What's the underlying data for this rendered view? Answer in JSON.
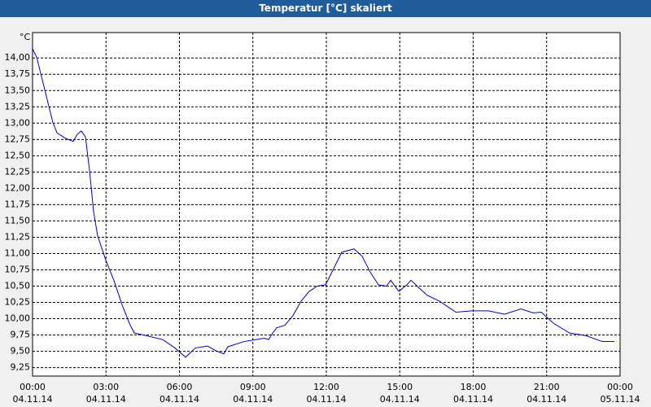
{
  "chart_data": {
    "type": "line",
    "title": "Temperatur [°C] skaliert",
    "y_label": "°C",
    "xlim": [
      0,
      24
    ],
    "ylim": [
      9.12,
      14.39
    ],
    "xticks": [
      {
        "value": 0,
        "label": "00:00"
      },
      {
        "value": 3,
        "label": "03:00"
      },
      {
        "value": 6,
        "label": "06:00"
      },
      {
        "value": 9,
        "label": "09:00"
      },
      {
        "value": 12,
        "label": "12:00"
      },
      {
        "value": 15,
        "label": "15:00"
      },
      {
        "value": 18,
        "label": "18:00"
      },
      {
        "value": 21,
        "label": "21:00"
      },
      {
        "value": 24,
        "label": "00:00"
      }
    ],
    "xtick_dates": [
      "04.11.14",
      "04.11.14",
      "04.11.14",
      "04.11.14",
      "04.11.14",
      "04.11.14",
      "04.11.14",
      "04.11.14",
      "05.11.14"
    ],
    "yticks": [
      {
        "value": 9.25,
        "label": "9,25"
      },
      {
        "value": 9.5,
        "label": "9,50"
      },
      {
        "value": 9.75,
        "label": "9,75"
      },
      {
        "value": 10,
        "label": "10,00"
      },
      {
        "value": 10.25,
        "label": "10,25"
      },
      {
        "value": 10.5,
        "label": "10,50"
      },
      {
        "value": 10.75,
        "label": "10,75"
      },
      {
        "value": 11,
        "label": "11,00"
      },
      {
        "value": 11.25,
        "label": "11,25"
      },
      {
        "value": 11.5,
        "label": "11,50"
      },
      {
        "value": 11.75,
        "label": "11,75"
      },
      {
        "value": 12,
        "label": "12,00"
      },
      {
        "value": 12.25,
        "label": "12,25"
      },
      {
        "value": 12.5,
        "label": "12,50"
      },
      {
        "value": 12.75,
        "label": "12,75"
      },
      {
        "value": 13,
        "label": "13,00"
      },
      {
        "value": 13.25,
        "label": "13,25"
      },
      {
        "value": 13.5,
        "label": "13,50"
      },
      {
        "value": 13.75,
        "label": "13,75"
      },
      {
        "value": 14,
        "label": "14,00"
      }
    ],
    "grid": true,
    "series": [
      {
        "color": "#0000cc",
        "x": [
          0,
          0.17,
          0.5,
          0.83,
          1.0,
          1.33,
          1.66,
          1.83,
          1.99,
          2.16,
          2.33,
          2.49,
          2.66,
          2.99,
          3.32,
          3.66,
          3.99,
          4.16,
          4.65,
          5.32,
          5.82,
          6.25,
          6.65,
          7.15,
          7.48,
          7.81,
          7.98,
          8.64,
          9.14,
          9.47,
          9.64,
          9.81,
          9.97,
          10.31,
          10.64,
          10.97,
          11.3,
          11.63,
          11.97,
          12.3,
          12.63,
          13.13,
          13.46,
          13.8,
          14.13,
          14.46,
          14.63,
          14.96,
          15.29,
          15.46,
          15.79,
          16.12,
          16.62,
          17.29,
          17.95,
          18.62,
          19.28,
          19.95,
          20.44,
          20.78,
          21.28,
          21.94,
          22.61,
          23.27,
          23.77
        ],
        "values": [
          14.14,
          14.01,
          13.51,
          13.01,
          12.85,
          12.77,
          12.72,
          12.83,
          12.88,
          12.79,
          12.27,
          11.65,
          11.27,
          10.9,
          10.59,
          10.21,
          9.9,
          9.78,
          9.74,
          9.68,
          9.55,
          9.41,
          9.55,
          9.58,
          9.51,
          9.46,
          9.57,
          9.65,
          9.68,
          9.7,
          9.68,
          9.78,
          9.86,
          9.9,
          10.05,
          10.27,
          10.42,
          10.5,
          10.52,
          10.77,
          11.02,
          11.07,
          10.96,
          10.71,
          10.52,
          10.5,
          10.59,
          10.42,
          10.52,
          10.59,
          10.47,
          10.36,
          10.27,
          10.1,
          10.12,
          10.12,
          10.07,
          10.15,
          10.09,
          10.1,
          9.93,
          9.78,
          9.74,
          9.65,
          9.65
        ]
      }
    ]
  }
}
